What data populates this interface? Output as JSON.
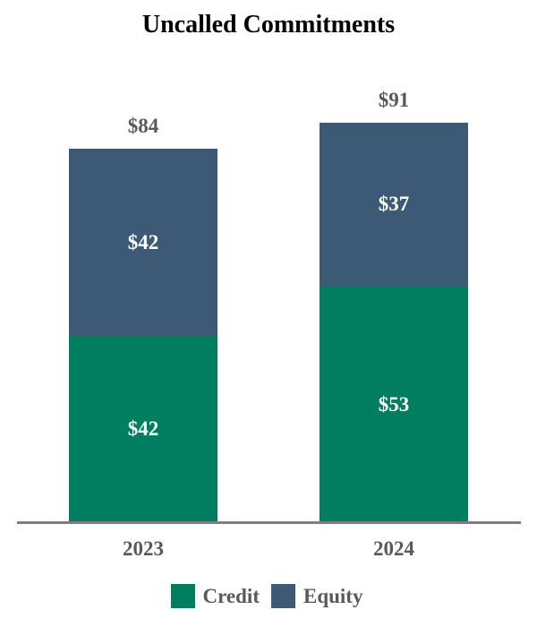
{
  "chart_data": {
    "type": "bar",
    "stacked": true,
    "title": "Uncalled Commitments",
    "categories": [
      "2023",
      "2024"
    ],
    "series": [
      {
        "name": "Credit",
        "values": [
          42,
          53
        ],
        "color": "#017E60"
      },
      {
        "name": "Equity",
        "values": [
          42,
          37
        ],
        "color": "#3C5A75"
      }
    ],
    "totals": [
      84,
      91
    ],
    "value_prefix": "$",
    "xlabel": "",
    "ylabel": "",
    "ylim": [
      0,
      100
    ],
    "grid": false,
    "legend_position": "bottom"
  },
  "labels": {
    "title": "Uncalled Commitments",
    "total_2023": "$84",
    "total_2024": "$91",
    "equity_2023": "$42",
    "credit_2023": "$42",
    "equity_2024": "$37",
    "credit_2024": "$53",
    "cat_2023": "2023",
    "cat_2024": "2024",
    "legend_credit": "Credit",
    "legend_equity": "Equity"
  },
  "colors": {
    "credit": "#017E60",
    "equity": "#3C5A75",
    "value_label_light": "#FFFFFF",
    "text_gray": "#595959",
    "axis_line": "#7F7F7F",
    "title": "#000000"
  }
}
